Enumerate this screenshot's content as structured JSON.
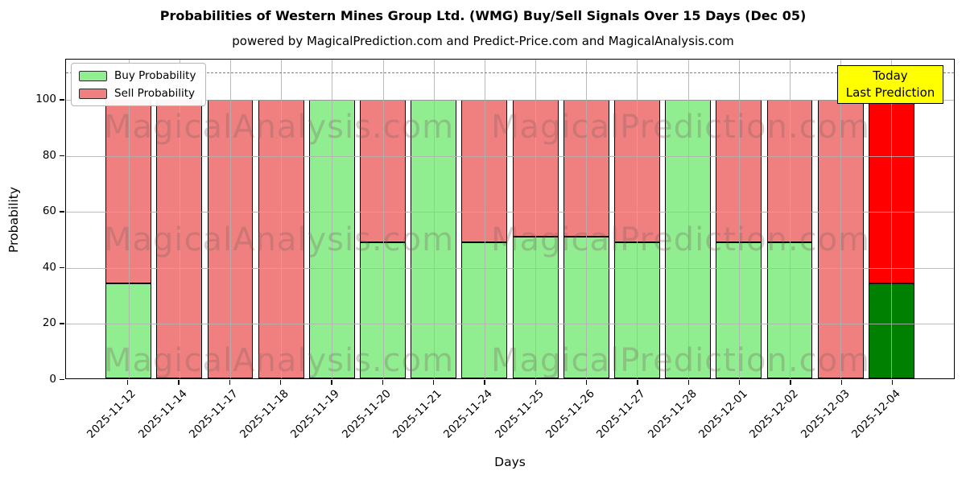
{
  "title": "Probabilities of Western Mines Group Ltd. (WMG) Buy/Sell Signals Over 15 Days (Dec 05)",
  "subtitle": "powered by MagicalPrediction.com and Predict-Price.com and MagicalAnalysis.com",
  "legend": {
    "items": [
      {
        "label": "Buy Probability",
        "color": "#90EE90"
      },
      {
        "label": "Sell Probability",
        "color": "#F08080"
      }
    ]
  },
  "annotation_box": {
    "line1": "Today",
    "line2": "Last Prediction",
    "bg_color": "#FFFF00"
  },
  "watermarks": [
    "MagicalAnalysis.com",
    "MagicalPrediction.com"
  ],
  "colors": {
    "buy_normal": "#90EE90",
    "sell_normal": "#F08080",
    "buy_today": "#008000",
    "sell_today": "#FF0000",
    "grid": "#B0B0B0",
    "dashed_guide": "#7F7F7F",
    "bar_edge": "#000000"
  },
  "chart_data": {
    "type": "bar",
    "stacked": true,
    "title": "Probabilities of Western Mines Group Ltd. (WMG) Buy/Sell Signals Over 15 Days (Dec 05)",
    "xlabel": "Days",
    "ylabel": "Probability",
    "yticks": [
      0,
      20,
      40,
      60,
      80,
      100
    ],
    "ylim": [
      0,
      114.5
    ],
    "dashed_guide_y": 110,
    "grid": true,
    "legend_position": "upper left",
    "categories": [
      "2025-11-12",
      "2025-11-14",
      "2025-11-17",
      "2025-11-18",
      "2025-11-19",
      "2025-11-20",
      "2025-11-21",
      "2025-11-24",
      "2025-11-25",
      "2025-11-26",
      "2025-11-27",
      "2025-11-28",
      "2025-12-01",
      "2025-12-02",
      "2025-12-03",
      "2025-12-04"
    ],
    "series": [
      {
        "name": "Buy Probability",
        "values": [
          34,
          0,
          0,
          0,
          100,
          49,
          100,
          49,
          51,
          51,
          49,
          100,
          49,
          49,
          0,
          34
        ]
      },
      {
        "name": "Sell Probability",
        "values": [
          66,
          100,
          100,
          100,
          0,
          51,
          0,
          51,
          49,
          49,
          51,
          0,
          51,
          51,
          100,
          66
        ]
      }
    ],
    "today_index": 15,
    "today_label": "Today Last Prediction"
  }
}
